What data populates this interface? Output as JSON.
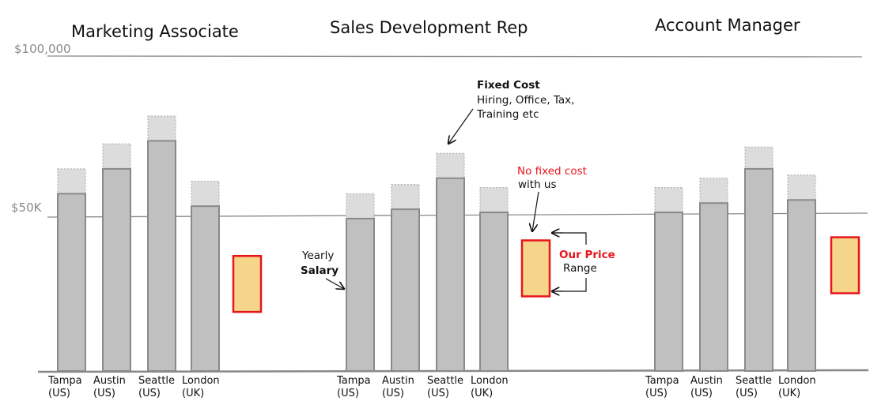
{
  "chart_data": {
    "type": "bar",
    "y_unit": "USD per year",
    "ylim": [
      0,
      100000
    ],
    "y_ticks": [
      {
        "value": 100000,
        "label": "$100,000"
      },
      {
        "value": 50000,
        "label": "$50K"
      }
    ],
    "stack_series": [
      "Yearly Salary",
      "Fixed Cost"
    ],
    "groups": [
      {
        "title": "Marketing Associate",
        "bars": [
          {
            "city": "Tampa",
            "country": "(US)",
            "salary": 57000,
            "fixed_cost": 8000
          },
          {
            "city": "Austin",
            "country": "(US)",
            "salary": 65000,
            "fixed_cost": 8000
          },
          {
            "city": "Seattle",
            "country": "(US)",
            "salary": 74000,
            "fixed_cost": 8000
          },
          {
            "city": "London",
            "country": "(UK)",
            "salary": 53000,
            "fixed_cost": 8000
          }
        ],
        "price_range": [
          19000,
          37000
        ]
      },
      {
        "title": "Sales Development Rep",
        "bars": [
          {
            "city": "Tampa",
            "country": "(US)",
            "salary": 49000,
            "fixed_cost": 8000
          },
          {
            "city": "Austin",
            "country": "(US)",
            "salary": 52000,
            "fixed_cost": 8000
          },
          {
            "city": "Seattle",
            "country": "(US)",
            "salary": 62000,
            "fixed_cost": 8000
          },
          {
            "city": "London",
            "country": "(UK)",
            "salary": 51000,
            "fixed_cost": 8000
          }
        ],
        "price_range": [
          24000,
          42000
        ]
      },
      {
        "title": "Account Manager",
        "bars": [
          {
            "city": "Tampa",
            "country": "(US)",
            "salary": 51000,
            "fixed_cost": 8000
          },
          {
            "city": "Austin",
            "country": "(US)",
            "salary": 54000,
            "fixed_cost": 8000
          },
          {
            "city": "Seattle",
            "country": "(US)",
            "salary": 65000,
            "fixed_cost": 7000
          },
          {
            "city": "London",
            "country": "(UK)",
            "salary": 55000,
            "fixed_cost": 8000
          }
        ],
        "price_range": [
          25000,
          43000
        ]
      }
    ],
    "annotations": {
      "fixed_cost_title": "Fixed Cost",
      "fixed_cost_lines": [
        "Hiring, Office, Tax,",
        "Training etc"
      ],
      "salary_line1": "Yearly",
      "salary_line2": "Salary",
      "no_fixed_line1": "No fixed cost",
      "no_fixed_line2": "with us",
      "price_line1": "Our Price",
      "price_line2": "Range"
    },
    "colors": {
      "salary_fill": "#c0c0c0",
      "salary_stroke": "#8a8a8a",
      "fixed_fill": "#dcdcdc",
      "fixed_stroke": "#b5b5b5",
      "price_fill": "#f4d58a",
      "price_stroke": "#e8141c",
      "gridline": "#8a8a8a",
      "highlight_text": "#e8141c"
    }
  }
}
